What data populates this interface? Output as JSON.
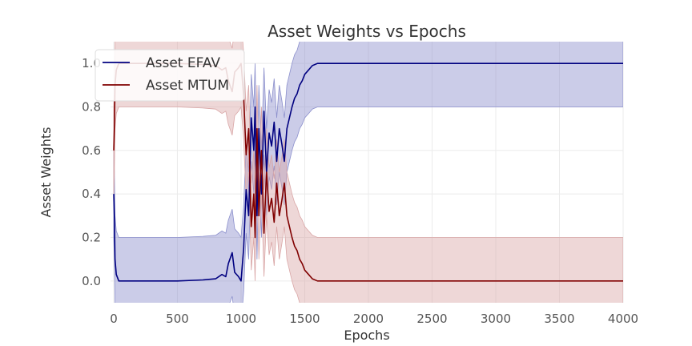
{
  "chart_data": {
    "type": "line",
    "title": "Asset Weights vs Epochs",
    "xlabel": "Epochs",
    "ylabel": "Asset Weights",
    "xlim": [
      -25,
      4000
    ],
    "ylim": [
      -0.1,
      1.1
    ],
    "xticks": [
      0,
      500,
      1000,
      1500,
      2000,
      2500,
      3000,
      3500,
      4000
    ],
    "xtick_labels": [
      "0",
      "500",
      "1000",
      "1500",
      "2000",
      "2500",
      "3000",
      "3500",
      "4000"
    ],
    "yticks": [
      0.0,
      0.2,
      0.4,
      0.6,
      0.8,
      1.0
    ],
    "ytick_labels": [
      "0.0",
      "0.2",
      "0.4",
      "0.6",
      "0.8",
      "1.0"
    ],
    "grid": true,
    "legend_position": "top-left",
    "band_half_width": 0.2,
    "series": [
      {
        "name": "Asset EFAV",
        "color": "#000080",
        "band_color": "#8b8fcc",
        "x": [
          0,
          5,
          10,
          20,
          40,
          80,
          150,
          300,
          500,
          700,
          800,
          850,
          880,
          900,
          930,
          950,
          980,
          1000,
          1020,
          1040,
          1060,
          1080,
          1100,
          1110,
          1125,
          1140,
          1160,
          1180,
          1200,
          1220,
          1240,
          1260,
          1280,
          1300,
          1320,
          1340,
          1360,
          1380,
          1400,
          1420,
          1440,
          1460,
          1480,
          1500,
          1530,
          1560,
          1600,
          1650,
          1700,
          1800,
          2000,
          2500,
          3000,
          3500,
          4000
        ],
        "values": [
          0.4,
          0.3,
          0.1,
          0.03,
          0.0,
          0.0,
          0.0,
          0.0,
          0.0,
          0.005,
          0.01,
          0.03,
          0.02,
          0.08,
          0.13,
          0.04,
          0.02,
          0.0,
          0.15,
          0.42,
          0.3,
          0.75,
          0.6,
          0.8,
          0.3,
          0.7,
          0.4,
          0.78,
          0.5,
          0.68,
          0.62,
          0.73,
          0.55,
          0.7,
          0.63,
          0.55,
          0.7,
          0.75,
          0.8,
          0.84,
          0.86,
          0.9,
          0.92,
          0.95,
          0.97,
          0.99,
          1.0,
          1.0,
          1.0,
          1.0,
          1.0,
          1.0,
          1.0,
          1.0,
          1.0
        ]
      },
      {
        "name": "Asset MTUM",
        "color": "#800000",
        "band_color": "#d9a6a6",
        "x": [
          0,
          5,
          10,
          20,
          40,
          80,
          150,
          300,
          500,
          700,
          800,
          850,
          880,
          900,
          930,
          950,
          980,
          1000,
          1020,
          1040,
          1060,
          1080,
          1100,
          1110,
          1125,
          1140,
          1160,
          1180,
          1200,
          1220,
          1240,
          1260,
          1280,
          1300,
          1320,
          1340,
          1360,
          1380,
          1400,
          1420,
          1440,
          1460,
          1480,
          1500,
          1530,
          1560,
          1600,
          1650,
          1700,
          1800,
          2000,
          2500,
          3000,
          3500,
          4000
        ],
        "values": [
          0.6,
          0.7,
          0.9,
          0.97,
          1.0,
          1.0,
          1.0,
          1.0,
          1.0,
          0.995,
          0.99,
          0.97,
          0.98,
          0.92,
          0.87,
          0.96,
          0.98,
          1.0,
          0.85,
          0.58,
          0.7,
          0.25,
          0.4,
          0.2,
          0.7,
          0.3,
          0.6,
          0.22,
          0.5,
          0.32,
          0.38,
          0.27,
          0.45,
          0.3,
          0.37,
          0.45,
          0.3,
          0.25,
          0.2,
          0.16,
          0.14,
          0.1,
          0.08,
          0.05,
          0.03,
          0.01,
          0.0,
          0.0,
          0.0,
          0.0,
          0.0,
          0.0,
          0.0,
          0.0,
          0.0
        ]
      }
    ]
  }
}
